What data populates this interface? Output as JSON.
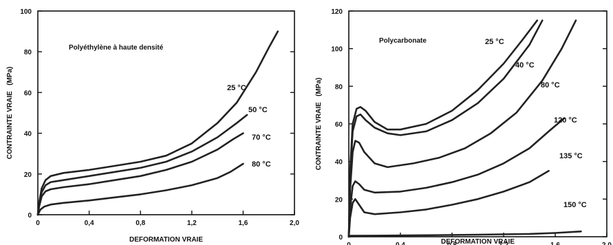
{
  "chart_data": [
    {
      "type": "line",
      "title": "Polyéthylène à haute densité",
      "xlabel": "DEFORMATION VRAIE",
      "ylabel": "CONTRAINTE VRAIE   (MPa)",
      "xlim": [
        0,
        2.0
      ],
      "ylim": [
        0,
        100
      ],
      "x_ticks": [
        "0",
        "0,4",
        "0,8",
        "1,2",
        "1,6",
        "2,0"
      ],
      "y_ticks": [
        "0",
        "20",
        "40",
        "60",
        "80",
        "100"
      ],
      "series": [
        {
          "name": "25 °C",
          "x": [
            0,
            0.01,
            0.03,
            0.06,
            0.1,
            0.2,
            0.4,
            0.6,
            0.8,
            1.0,
            1.2,
            1.4,
            1.55,
            1.7,
            1.8,
            1.87
          ],
          "y": [
            0,
            6,
            13,
            17,
            19,
            20.5,
            22,
            24,
            26,
            29,
            35,
            45,
            55,
            70,
            82,
            90
          ]
        },
        {
          "name": "50 °C",
          "x": [
            0,
            0.01,
            0.03,
            0.06,
            0.1,
            0.2,
            0.4,
            0.6,
            0.8,
            1.0,
            1.2,
            1.4,
            1.55,
            1.63
          ],
          "y": [
            0,
            5,
            11,
            14.5,
            16,
            17,
            19,
            21,
            23,
            26,
            31,
            38,
            45,
            49
          ]
        },
        {
          "name": "70 °C",
          "x": [
            0,
            0.01,
            0.03,
            0.06,
            0.1,
            0.2,
            0.4,
            0.6,
            0.8,
            1.0,
            1.2,
            1.4,
            1.52,
            1.6
          ],
          "y": [
            0,
            4,
            9,
            11.5,
            12.5,
            13.5,
            15,
            17,
            19,
            22,
            26,
            32,
            37,
            40
          ]
        },
        {
          "name": "80 °C",
          "x": [
            0,
            0.02,
            0.05,
            0.1,
            0.2,
            0.4,
            0.6,
            0.8,
            1.0,
            1.2,
            1.4,
            1.5,
            1.6
          ],
          "y": [
            0,
            2.5,
            4,
            5,
            5.8,
            7,
            8.5,
            10,
            12,
            14.5,
            18,
            21,
            25
          ]
        }
      ]
    },
    {
      "type": "line",
      "title": "Polycarbonate",
      "xlabel": "DEFORMATION VRAIE",
      "ylabel": "CONTRAINTE VRAIE   (MPa)",
      "xlim": [
        0,
        2.0
      ],
      "ylim": [
        0,
        120
      ],
      "x_ticks": [
        "0",
        "0,4",
        "0,8",
        "1,2",
        "1,6",
        "2,0"
      ],
      "y_ticks": [
        "0",
        "20",
        "40",
        "60",
        "80",
        "100",
        "120"
      ],
      "series": [
        {
          "name": "25 °C",
          "x": [
            0,
            0.01,
            0.03,
            0.06,
            0.09,
            0.13,
            0.2,
            0.3,
            0.4,
            0.6,
            0.8,
            1.0,
            1.2,
            1.35,
            1.46
          ],
          "y": [
            0,
            35,
            60,
            68,
            69,
            67,
            61,
            57,
            57,
            60,
            67,
            78,
            92,
            105,
            115
          ]
        },
        {
          "name": "40 °C",
          "x": [
            0,
            0.01,
            0.03,
            0.06,
            0.09,
            0.13,
            0.2,
            0.3,
            0.4,
            0.6,
            0.8,
            1.0,
            1.2,
            1.4,
            1.5
          ],
          "y": [
            0,
            32,
            56,
            64,
            65,
            62,
            58,
            55,
            54,
            56,
            62,
            71,
            84,
            102,
            115
          ]
        },
        {
          "name": "80 °C",
          "x": [
            0,
            0.01,
            0.03,
            0.05,
            0.08,
            0.12,
            0.2,
            0.3,
            0.5,
            0.7,
            0.9,
            1.1,
            1.3,
            1.5,
            1.65,
            1.76
          ],
          "y": [
            0,
            25,
            45,
            51,
            50,
            45,
            39,
            37,
            39,
            42,
            47,
            55,
            66,
            83,
            100,
            115
          ]
        },
        {
          "name": "120 °C",
          "x": [
            0,
            0.01,
            0.03,
            0.05,
            0.08,
            0.12,
            0.2,
            0.4,
            0.6,
            0.8,
            1.0,
            1.2,
            1.4,
            1.55,
            1.67
          ],
          "y": [
            0,
            15,
            27,
            29.5,
            28,
            25,
            23.5,
            24,
            26,
            29,
            33,
            39,
            47,
            56,
            63
          ]
        },
        {
          "name": "135 °C",
          "x": [
            0,
            0.01,
            0.03,
            0.05,
            0.08,
            0.12,
            0.2,
            0.4,
            0.6,
            0.8,
            1.0,
            1.2,
            1.4,
            1.55
          ],
          "y": [
            0,
            10,
            18,
            20,
            17,
            13,
            12,
            13,
            14.5,
            17,
            20,
            24,
            29,
            35
          ]
        },
        {
          "name": "150 °C",
          "x": [
            0,
            0.2,
            0.6,
            1.0,
            1.4,
            1.6,
            1.8
          ],
          "y": [
            0.5,
            0.6,
            0.8,
            1.1,
            1.5,
            2,
            2.8
          ]
        }
      ]
    }
  ]
}
